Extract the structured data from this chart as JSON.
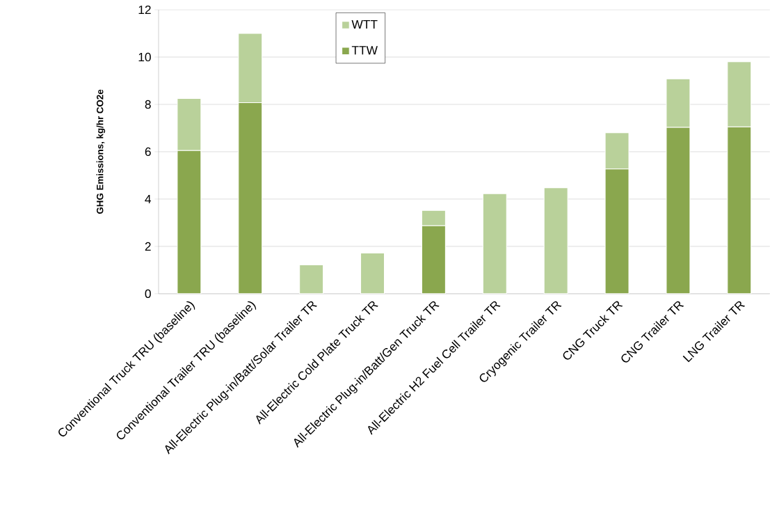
{
  "chart_data": {
    "type": "bar",
    "stacked": true,
    "ylabel": "GHG Emissions, kg/hr CO2e",
    "categories": [
      "Conventional Truck TRU (baseline)",
      "Conventional Trailer TRU (baseline)",
      "All-Electric Plug-in/Batt/Solar Trailer TR",
      "All-Electric Cold Plate Truck TR",
      "All-Electric Plug-in/Batt/Gen Truck TR",
      "All-Electric H2 Fuel Cell Trailer TR",
      "Cryogenic Trailer TR",
      "CNG Truck TR",
      "CNG Trailer TR",
      "LNG Trailer TR"
    ],
    "series": [
      {
        "name": "TTW",
        "color": "#8aa74e",
        "values": [
          6.05,
          8.07,
          0,
          0,
          2.87,
          0,
          0,
          5.27,
          7.03,
          7.05
        ]
      },
      {
        "name": "WTT",
        "color": "#b9d19a",
        "values": [
          2.2,
          2.93,
          1.22,
          1.72,
          0.65,
          4.23,
          4.48,
          1.53,
          2.05,
          2.75
        ]
      }
    ],
    "ylim": [
      0,
      12
    ],
    "yticks": [
      0,
      2,
      4,
      6,
      8,
      10,
      12
    ],
    "grid": "y",
    "legend": "top"
  }
}
